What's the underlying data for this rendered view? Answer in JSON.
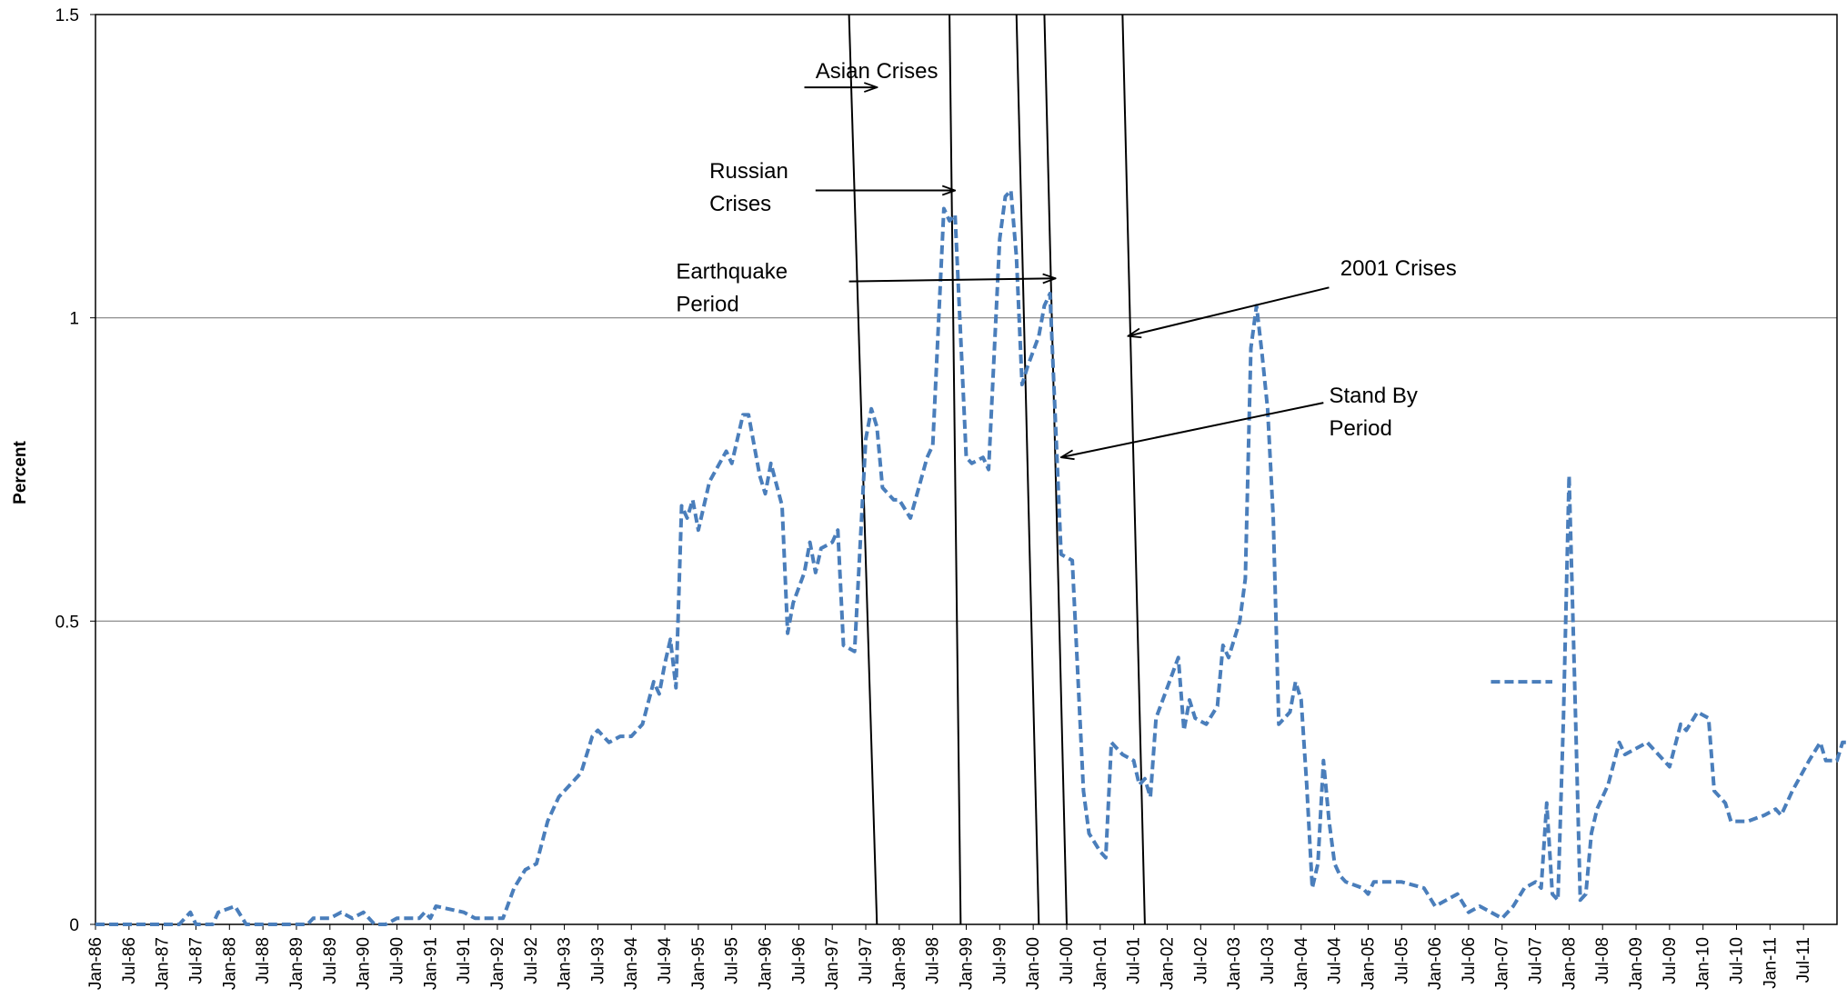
{
  "chart_data": {
    "type": "line",
    "title": "",
    "xlabel": "",
    "ylabel": "Percent",
    "ylim": [
      0,
      1.5
    ],
    "yticks": [
      "0",
      "0.5",
      "1",
      "1.5"
    ],
    "grid": "horizontal",
    "x_start": "1986-01",
    "x_end": "2011-12",
    "x_tick_labels": [
      "Jan-86",
      "Jul-86",
      "Jan-87",
      "Jul-87",
      "Jan-88",
      "Jul-88",
      "Jan-89",
      "Jul-89",
      "Jan-90",
      "Jul-90",
      "Jan-91",
      "Jul-91",
      "Jan-92",
      "Jul-92",
      "Jan-93",
      "Jul-93",
      "Jan-94",
      "Jul-94",
      "Jan-95",
      "Jul-95",
      "Jan-96",
      "Jul-96",
      "Jan-97",
      "Jul-97",
      "Jan-98",
      "Jul-98",
      "Jan-99",
      "Jul-99",
      "Jan-00",
      "Jul-00",
      "Jan-01",
      "Jul-01",
      "Jan-02",
      "Jul-02",
      "Jan-03",
      "Jul-03",
      "Jan-04",
      "Jul-04",
      "Jan-05",
      "Jul-05",
      "Jan-06",
      "Jul-06",
      "Jan-07",
      "Jul-07",
      "Jan-08",
      "Jul-08",
      "Jan-09",
      "Jul-09",
      "Jan-10",
      "Jul-10",
      "Jan-11",
      "Jul-11"
    ],
    "series": [
      {
        "color": "#4a7ebb",
        "style": "dashed",
        "points": [
          [
            "1986-01",
            0.0
          ],
          [
            "1986-06",
            0.0
          ],
          [
            "1987-04",
            0.0
          ],
          [
            "1987-06",
            0.02
          ],
          [
            "1987-07",
            0.0
          ],
          [
            "1987-10",
            0.0
          ],
          [
            "1987-11",
            0.02
          ],
          [
            "1988-02",
            0.03
          ],
          [
            "1988-04",
            0.0
          ],
          [
            "1988-08",
            0.0
          ],
          [
            "1989-03",
            0.0
          ],
          [
            "1989-04",
            0.01
          ],
          [
            "1989-07",
            0.01
          ],
          [
            "1989-09",
            0.02
          ],
          [
            "1989-11",
            0.01
          ],
          [
            "1990-01",
            0.02
          ],
          [
            "1990-03",
            0.0
          ],
          [
            "1990-05",
            0.0
          ],
          [
            "1990-07",
            0.01
          ],
          [
            "1990-11",
            0.01
          ],
          [
            "1990-12",
            0.02
          ],
          [
            "1991-01",
            0.01
          ],
          [
            "1991-02",
            0.03
          ],
          [
            "1991-07",
            0.02
          ],
          [
            "1991-09",
            0.01
          ],
          [
            "1992-02",
            0.01
          ],
          [
            "1992-04",
            0.06
          ],
          [
            "1992-06",
            0.09
          ],
          [
            "1992-08",
            0.1
          ],
          [
            "1992-10",
            0.17
          ],
          [
            "1992-12",
            0.21
          ],
          [
            "1993-01",
            0.22
          ],
          [
            "1993-04",
            0.25
          ],
          [
            "1993-06",
            0.31
          ],
          [
            "1993-07",
            0.32
          ],
          [
            "1993-09",
            0.3
          ],
          [
            "1993-11",
            0.31
          ],
          [
            "1994-01",
            0.31
          ],
          [
            "1994-03",
            0.33
          ],
          [
            "1994-05",
            0.4
          ],
          [
            "1994-06",
            0.38
          ],
          [
            "1994-07",
            0.43
          ],
          [
            "1994-08",
            0.47
          ],
          [
            "1994-09",
            0.39
          ],
          [
            "1994-10",
            0.69
          ],
          [
            "1994-11",
            0.67
          ],
          [
            "1994-12",
            0.7
          ],
          [
            "1995-01",
            0.65
          ],
          [
            "1995-03",
            0.73
          ],
          [
            "1995-06",
            0.78
          ],
          [
            "1995-07",
            0.76
          ],
          [
            "1995-09",
            0.84
          ],
          [
            "1995-10",
            0.84
          ],
          [
            "1995-12",
            0.74
          ],
          [
            "1996-01",
            0.71
          ],
          [
            "1996-02",
            0.76
          ],
          [
            "1996-04",
            0.69
          ],
          [
            "1996-05",
            0.48
          ],
          [
            "1996-06",
            0.53
          ],
          [
            "1996-08",
            0.58
          ],
          [
            "1996-09",
            0.63
          ],
          [
            "1996-10",
            0.58
          ],
          [
            "1996-11",
            0.62
          ],
          [
            "1997-01",
            0.63
          ],
          [
            "1997-02",
            0.65
          ],
          [
            "1997-03",
            0.46
          ],
          [
            "1997-05",
            0.45
          ],
          [
            "1997-07",
            0.8
          ],
          [
            "1997-08",
            0.85
          ],
          [
            "1997-09",
            0.82
          ],
          [
            "1997-10",
            0.72
          ],
          [
            "1997-12",
            0.7
          ],
          [
            "1998-01",
            0.7
          ],
          [
            "1998-03",
            0.67
          ],
          [
            "1998-06",
            0.77
          ],
          [
            "1998-07",
            0.79
          ],
          [
            "1998-09",
            1.18
          ],
          [
            "1998-10",
            1.16
          ],
          [
            "1998-11",
            1.17
          ],
          [
            "1999-01",
            0.77
          ],
          [
            "1999-02",
            0.76
          ],
          [
            "1999-04",
            0.77
          ],
          [
            "1999-05",
            0.75
          ],
          [
            "1999-07",
            1.13
          ],
          [
            "1999-08",
            1.2
          ],
          [
            "1999-09",
            1.21
          ],
          [
            "1999-10",
            1.1
          ],
          [
            "1999-11",
            0.89
          ],
          [
            "1999-12",
            0.92
          ],
          [
            "2000-02",
            0.97
          ],
          [
            "2000-03",
            1.02
          ],
          [
            "2000-04",
            1.04
          ],
          [
            "2000-06",
            0.61
          ],
          [
            "2000-08",
            0.6
          ],
          [
            "2000-10",
            0.22
          ],
          [
            "2000-11",
            0.15
          ],
          [
            "2001-01",
            0.12
          ],
          [
            "2001-02",
            0.11
          ],
          [
            "2001-03",
            0.3
          ],
          [
            "2001-05",
            0.28
          ],
          [
            "2001-07",
            0.27
          ],
          [
            "2001-08",
            0.23
          ],
          [
            "2001-09",
            0.24
          ],
          [
            "2001-10",
            0.21
          ],
          [
            "2001-11",
            0.34
          ],
          [
            "2002-01",
            0.39
          ],
          [
            "2002-03",
            0.44
          ],
          [
            "2002-04",
            0.32
          ],
          [
            "2002-05",
            0.37
          ],
          [
            "2002-06",
            0.34
          ],
          [
            "2002-08",
            0.33
          ],
          [
            "2002-10",
            0.36
          ],
          [
            "2002-11",
            0.46
          ],
          [
            "2002-12",
            0.44
          ],
          [
            "2003-02",
            0.5
          ],
          [
            "2003-03",
            0.57
          ],
          [
            "2003-04",
            0.95
          ],
          [
            "2003-05",
            1.02
          ],
          [
            "2003-06",
            0.94
          ],
          [
            "2003-07",
            0.85
          ],
          [
            "2003-08",
            0.67
          ],
          [
            "2003-09",
            0.33
          ],
          [
            "2003-11",
            0.35
          ],
          [
            "2003-12",
            0.4
          ],
          [
            "2004-01",
            0.37
          ],
          [
            "2004-02",
            0.23
          ],
          [
            "2004-03",
            0.06
          ],
          [
            "2004-04",
            0.1
          ],
          [
            "2004-05",
            0.27
          ],
          [
            "2004-06",
            0.17
          ],
          [
            "2004-07",
            0.1
          ],
          [
            "2004-08",
            0.08
          ],
          [
            "2004-09",
            0.07
          ],
          [
            "2004-12",
            0.06
          ],
          [
            "2005-01",
            0.05
          ],
          [
            "2005-02",
            0.07
          ],
          [
            "2005-05",
            0.07
          ],
          [
            "2005-07",
            0.07
          ],
          [
            "2005-11",
            0.06
          ],
          [
            "2006-01",
            0.03
          ],
          [
            "2006-03",
            0.04
          ],
          [
            "2006-05",
            0.05
          ],
          [
            "2006-07",
            0.02
          ],
          [
            "2006-09",
            0.03
          ],
          [
            "2006-11",
            0.02
          ],
          [
            "2007-01",
            0.01
          ],
          [
            "2007-03",
            0.03
          ],
          [
            "2007-05",
            0.06
          ],
          [
            "2007-07",
            0.07
          ],
          [
            "2007-08",
            0.06
          ],
          [
            "2007-09",
            0.2
          ],
          [
            "2007-10",
            0.05
          ],
          [
            "2007-11",
            0.04
          ],
          [
            "2007-12",
            0.34
          ],
          [
            "2008-01",
            0.74
          ],
          [
            "2008-02",
            0.4
          ],
          [
            "2008-03",
            0.04
          ],
          [
            "2008-04",
            0.05
          ],
          [
            "2008-05",
            0.15
          ],
          [
            "2008-06",
            0.19
          ],
          [
            "2008-08",
            0.23
          ],
          [
            "2008-10",
            0.3
          ],
          [
            "2008-11",
            0.28
          ],
          [
            "2009-01",
            0.29
          ],
          [
            "2009-03",
            0.3
          ],
          [
            "2009-05",
            0.28
          ],
          [
            "2009-07",
            0.26
          ],
          [
            "2009-09",
            0.33
          ],
          [
            "2009-10",
            0.32
          ],
          [
            "2009-12",
            0.35
          ],
          [
            "2010-02",
            0.34
          ],
          [
            "2010-03",
            0.22
          ],
          [
            "2010-05",
            0.2
          ],
          [
            "2010-06",
            0.17
          ],
          [
            "2010-09",
            0.17
          ],
          [
            "2010-12",
            0.18
          ],
          [
            "2011-02",
            0.19
          ],
          [
            "2011-03",
            0.18
          ],
          [
            "2011-05",
            0.22
          ],
          [
            "2011-08",
            0.27
          ],
          [
            "2011-10",
            0.3
          ],
          [
            "2011-11",
            0.27
          ],
          [
            "2012-01",
            0.27
          ],
          [
            "2012-02",
            0.3
          ],
          [
            "2012-04",
            0.3
          ],
          [
            "2012-07",
            0.22
          ]
        ]
      }
    ],
    "vertical_markers": [
      {
        "top": "1997-04",
        "bottom": "1997-09"
      },
      {
        "top": "1998-10",
        "bottom": "1998-12"
      },
      {
        "top": "1999-10",
        "bottom": "2000-02"
      },
      {
        "top": "2000-03",
        "bottom": "2000-07"
      },
      {
        "top": "2001-05",
        "bottom": "2001-09"
      }
    ],
    "annotations": [
      {
        "lines": [
          "Asian Crises"
        ],
        "x": "1996-10",
        "y": 1.395,
        "arrow_from": [
          "1996-08",
          1.38
        ],
        "arrow_to": [
          "1997-09",
          1.38
        ]
      },
      {
        "lines": [
          "Russian",
          "Crises"
        ],
        "x": "1995-03",
        "y": 1.23,
        "arrow_from": [
          "1996-10",
          1.21
        ],
        "arrow_to": [
          "1998-11",
          1.21
        ]
      },
      {
        "lines": [
          "Earthquake",
          "Period"
        ],
        "x": "1994-09",
        "y": 1.065,
        "arrow_from": [
          "1997-04",
          1.06
        ],
        "arrow_to": [
          "2000-05",
          1.065
        ]
      },
      {
        "lines": [
          "2001 Crises"
        ],
        "x": "2004-08",
        "y": 1.07,
        "arrow_from": [
          "2004-06",
          1.05
        ],
        "arrow_to": [
          "2001-06",
          0.97
        ]
      },
      {
        "lines": [
          "Stand By",
          "Period"
        ],
        "x": "2004-06",
        "y": 0.86,
        "arrow_from": [
          "2004-05",
          0.86
        ],
        "arrow_to": [
          "2000-06",
          0.77
        ]
      }
    ],
    "legend": {
      "position": "center-right",
      "entries": [
        {
          "label": "",
          "color": "#4a7ebb"
        }
      ],
      "y": 0.4,
      "x_from": "2006-11",
      "x_to": "2007-10"
    }
  }
}
